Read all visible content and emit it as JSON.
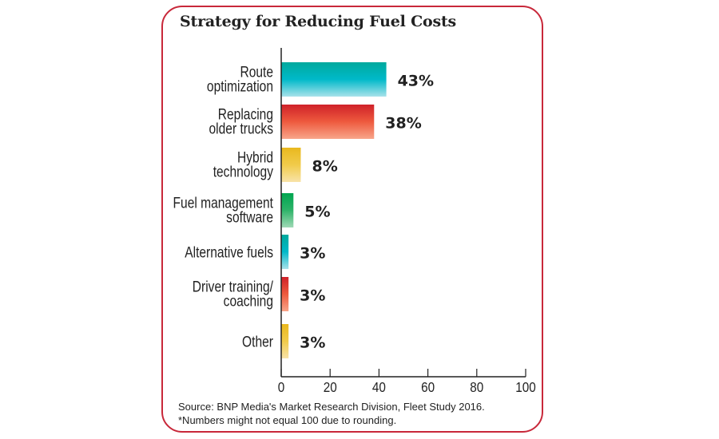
{
  "chart_data": {
    "type": "bar",
    "orientation": "horizontal",
    "title": "Strategy for Reducing Fuel Costs",
    "categories": [
      [
        "Route",
        "optimization"
      ],
      [
        "Replacing",
        "older trucks"
      ],
      [
        "Hybrid",
        "technology"
      ],
      [
        "Fuel management",
        "software"
      ],
      [
        "Alternative fuels"
      ],
      [
        "Driver training/",
        "coaching"
      ],
      [
        "Other"
      ]
    ],
    "values": [
      43,
      38,
      8,
      5,
      3,
      3,
      3
    ],
    "data_labels": [
      "43%",
      "38%",
      "8%",
      "5%",
      "3%",
      "3%",
      "3%"
    ],
    "bar_colors": [
      [
        "#00a99d",
        "#00b9c9",
        "#a8e2ea"
      ],
      [
        "#cf2129",
        "#ee5a3e",
        "#f8a58a"
      ],
      [
        "#e9b81e",
        "#f1cb4a",
        "#f8e3a8"
      ],
      [
        "#00a54f",
        "#2fb46a",
        "#9fd9b5"
      ],
      [
        "#00a99d",
        "#00b9c9",
        "#a8e2ea"
      ],
      [
        "#cf2129",
        "#ee5a3e",
        "#f8a58a"
      ],
      [
        "#e9b81e",
        "#f1cb4a",
        "#f8e3a8"
      ]
    ],
    "xlim": [
      0,
      100
    ],
    "xticks": [
      0,
      20,
      40,
      60,
      80,
      100
    ],
    "grid": false,
    "legend": "none",
    "border_color": "#c8283a"
  },
  "footnotes": {
    "source": "Source: BNP Media's Market Research Division, Fleet Study 2016.",
    "note": "*Numbers might not equal 100 due to rounding."
  }
}
